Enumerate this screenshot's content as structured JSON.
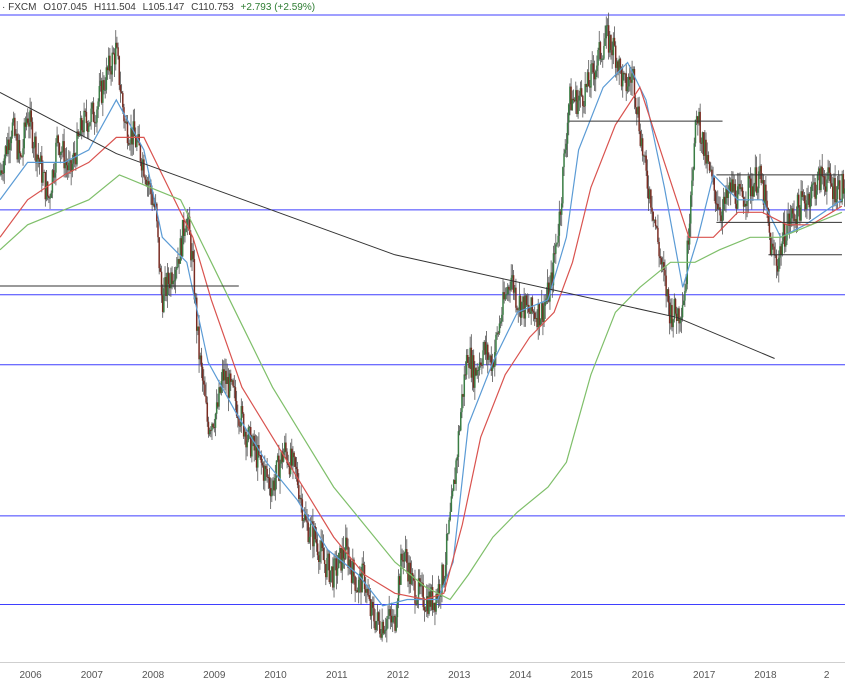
{
  "header": {
    "source": "· FXCM",
    "open": "O107.045",
    "high": "H111.504",
    "low": "L105.147",
    "close": "C110.753",
    "change": "+2.793 (+2.59%)"
  },
  "colors": {
    "candle_up": "#3a7d44",
    "candle_down": "#7a2c22",
    "ma_fast": "#5b9bd5",
    "ma_mid": "#d9534f",
    "ma_slow": "#7fbf6a",
    "horizontal_levels": "#3f3fff",
    "drawn_lines": "#333333"
  },
  "chart_data": {
    "type": "candlestick",
    "timeframe": "weekly",
    "xlabel": "",
    "ylabel": "",
    "x_ticks": [
      "2006",
      "2007",
      "2008",
      "2009",
      "2010",
      "2011",
      "2012",
      "2013",
      "2014",
      "2015",
      "2016",
      "2017",
      "2018",
      "2"
    ],
    "xlim": [
      2005.55,
      2019.35
    ],
    "ylim": [
      74,
      127
    ],
    "price_path": [
      [
        2005.55,
        113
      ],
      [
        2005.75,
        117
      ],
      [
        2005.9,
        114
      ],
      [
        2006.0,
        118
      ],
      [
        2006.2,
        114
      ],
      [
        2006.35,
        111
      ],
      [
        2006.5,
        116
      ],
      [
        2006.7,
        113
      ],
      [
        2006.9,
        117
      ],
      [
        2007.1,
        118
      ],
      [
        2007.3,
        121
      ],
      [
        2007.45,
        123
      ],
      [
        2007.6,
        117
      ],
      [
        2007.75,
        116
      ],
      [
        2007.9,
        114
      ],
      [
        2008.1,
        110
      ],
      [
        2008.2,
        103
      ],
      [
        2008.35,
        105
      ],
      [
        2008.5,
        107
      ],
      [
        2008.6,
        110
      ],
      [
        2008.7,
        106
      ],
      [
        2008.8,
        99
      ],
      [
        2008.95,
        93
      ],
      [
        2009.1,
        94
      ],
      [
        2009.2,
        97
      ],
      [
        2009.4,
        95
      ],
      [
        2009.6,
        92
      ],
      [
        2009.8,
        90
      ],
      [
        2010.0,
        88
      ],
      [
        2010.2,
        91
      ],
      [
        2010.4,
        89
      ],
      [
        2010.55,
        85
      ],
      [
        2010.7,
        84
      ],
      [
        2010.85,
        82
      ],
      [
        2011.0,
        81
      ],
      [
        2011.2,
        83
      ],
      [
        2011.4,
        80
      ],
      [
        2011.5,
        81
      ],
      [
        2011.6,
        78
      ],
      [
        2011.75,
        77
      ],
      [
        2011.9,
        77.5
      ],
      [
        2012.0,
        77
      ],
      [
        2012.05,
        80
      ],
      [
        2012.15,
        83
      ],
      [
        2012.3,
        80
      ],
      [
        2012.5,
        79
      ],
      [
        2012.65,
        79
      ],
      [
        2012.8,
        81
      ],
      [
        2012.95,
        87
      ],
      [
        2013.1,
        95
      ],
      [
        2013.2,
        99
      ],
      [
        2013.3,
        97
      ],
      [
        2013.45,
        99
      ],
      [
        2013.6,
        98
      ],
      [
        2013.75,
        102
      ],
      [
        2013.9,
        105
      ],
      [
        2014.0,
        103
      ],
      [
        2014.2,
        102
      ],
      [
        2014.4,
        102
      ],
      [
        2014.55,
        104
      ],
      [
        2014.7,
        110
      ],
      [
        2014.85,
        119
      ],
      [
        2015.0,
        119
      ],
      [
        2015.15,
        120
      ],
      [
        2015.3,
        122
      ],
      [
        2015.45,
        124
      ],
      [
        2015.6,
        123
      ],
      [
        2015.75,
        120
      ],
      [
        2015.9,
        121
      ],
      [
        2016.0,
        117
      ],
      [
        2016.1,
        113
      ],
      [
        2016.2,
        111
      ],
      [
        2016.35,
        106
      ],
      [
        2016.5,
        102
      ],
      [
        2016.65,
        102
      ],
      [
        2016.75,
        104
      ],
      [
        2016.85,
        113
      ],
      [
        2016.95,
        118
      ],
      [
        2017.05,
        115
      ],
      [
        2017.2,
        112
      ],
      [
        2017.35,
        110
      ],
      [
        2017.5,
        112
      ],
      [
        2017.65,
        111
      ],
      [
        2017.8,
        112
      ],
      [
        2017.95,
        113
      ],
      [
        2018.05,
        111
      ],
      [
        2018.15,
        107
      ],
      [
        2018.25,
        106
      ],
      [
        2018.4,
        109
      ],
      [
        2018.55,
        110
      ],
      [
        2018.7,
        111
      ],
      [
        2018.85,
        112
      ],
      [
        2019.0,
        113
      ],
      [
        2019.15,
        112
      ],
      [
        2019.3,
        112
      ]
    ],
    "moving_averages": [
      {
        "color_key": "ma_fast",
        "points": [
          [
            2005.55,
            111
          ],
          [
            2006.0,
            114
          ],
          [
            2006.6,
            114
          ],
          [
            2007.0,
            115
          ],
          [
            2007.45,
            119
          ],
          [
            2007.9,
            115
          ],
          [
            2008.2,
            108
          ],
          [
            2008.6,
            106
          ],
          [
            2008.95,
            98
          ],
          [
            2009.4,
            94
          ],
          [
            2009.9,
            90
          ],
          [
            2010.4,
            87
          ],
          [
            2010.9,
            83
          ],
          [
            2011.4,
            81
          ],
          [
            2011.8,
            78.5
          ],
          [
            2012.2,
            79
          ],
          [
            2012.7,
            79
          ],
          [
            2012.95,
            82
          ],
          [
            2013.2,
            93
          ],
          [
            2013.6,
            98
          ],
          [
            2014.0,
            102
          ],
          [
            2014.5,
            103
          ],
          [
            2014.8,
            108
          ],
          [
            2015.0,
            115
          ],
          [
            2015.4,
            120
          ],
          [
            2015.8,
            122
          ],
          [
            2016.1,
            119
          ],
          [
            2016.4,
            112
          ],
          [
            2016.7,
            104
          ],
          [
            2016.95,
            108
          ],
          [
            2017.2,
            113
          ],
          [
            2017.6,
            111
          ],
          [
            2018.0,
            111
          ],
          [
            2018.3,
            108
          ],
          [
            2018.7,
            109
          ],
          [
            2019.3,
            111
          ]
        ]
      },
      {
        "color_key": "ma_mid",
        "points": [
          [
            2005.55,
            108
          ],
          [
            2006.0,
            111
          ],
          [
            2006.6,
            113
          ],
          [
            2007.0,
            114
          ],
          [
            2007.45,
            116
          ],
          [
            2007.9,
            116
          ],
          [
            2008.3,
            112
          ],
          [
            2008.7,
            108
          ],
          [
            2009.0,
            103
          ],
          [
            2009.5,
            96
          ],
          [
            2010.0,
            92
          ],
          [
            2010.5,
            88
          ],
          [
            2011.0,
            84
          ],
          [
            2011.5,
            81
          ],
          [
            2012.0,
            79.5
          ],
          [
            2012.5,
            79
          ],
          [
            2012.8,
            79.5
          ],
          [
            2013.1,
            85
          ],
          [
            2013.4,
            92
          ],
          [
            2013.8,
            97
          ],
          [
            2014.2,
            100
          ],
          [
            2014.6,
            102
          ],
          [
            2014.9,
            106
          ],
          [
            2015.2,
            112
          ],
          [
            2015.6,
            117
          ],
          [
            2016.0,
            120
          ],
          [
            2016.4,
            114
          ],
          [
            2016.8,
            108
          ],
          [
            2017.2,
            108
          ],
          [
            2017.6,
            110
          ],
          [
            2018.0,
            110
          ],
          [
            2018.4,
            109
          ],
          [
            2018.8,
            109
          ],
          [
            2019.3,
            110.5
          ]
        ]
      },
      {
        "color_key": "ma_slow",
        "points": [
          [
            2005.55,
            107
          ],
          [
            2006.0,
            109
          ],
          [
            2006.5,
            110
          ],
          [
            2007.0,
            111
          ],
          [
            2007.5,
            113
          ],
          [
            2008.0,
            112
          ],
          [
            2008.5,
            111
          ],
          [
            2009.0,
            106
          ],
          [
            2009.5,
            101
          ],
          [
            2010.0,
            96
          ],
          [
            2010.5,
            92
          ],
          [
            2011.0,
            88
          ],
          [
            2011.5,
            85
          ],
          [
            2012.0,
            82
          ],
          [
            2012.5,
            80
          ],
          [
            2012.9,
            79
          ],
          [
            2013.2,
            81
          ],
          [
            2013.6,
            84
          ],
          [
            2014.0,
            86
          ],
          [
            2014.5,
            88
          ],
          [
            2014.8,
            90
          ],
          [
            2015.2,
            97
          ],
          [
            2015.6,
            102
          ],
          [
            2016.0,
            104
          ],
          [
            2016.5,
            106
          ],
          [
            2016.9,
            106
          ],
          [
            2017.3,
            107
          ],
          [
            2017.8,
            108
          ],
          [
            2018.3,
            108
          ],
          [
            2018.8,
            109
          ],
          [
            2019.3,
            110
          ]
        ]
      }
    ],
    "horizontal_levels": [
      125.8,
      110.2,
      103.4,
      97.8,
      85.7,
      78.6
    ],
    "trendline": [
      [
        2005.55,
        119.6
      ],
      [
        2007.45,
        114.7
      ],
      [
        2012.0,
        106.6
      ],
      [
        2016.6,
        101.6
      ],
      [
        2018.2,
        98.3
      ]
    ],
    "range_segments": [
      {
        "y": 104.1,
        "x": [
          2005.55,
          2009.45
        ]
      },
      {
        "y": 117.3,
        "x": [
          2014.85,
          2017.35
        ]
      },
      {
        "y": 113.0,
        "x": [
          2017.25,
          2019.3
        ]
      },
      {
        "y": 109.2,
        "x": [
          2017.25,
          2019.3
        ]
      },
      {
        "y": 106.6,
        "x": [
          2018.1,
          2019.3
        ]
      }
    ]
  }
}
